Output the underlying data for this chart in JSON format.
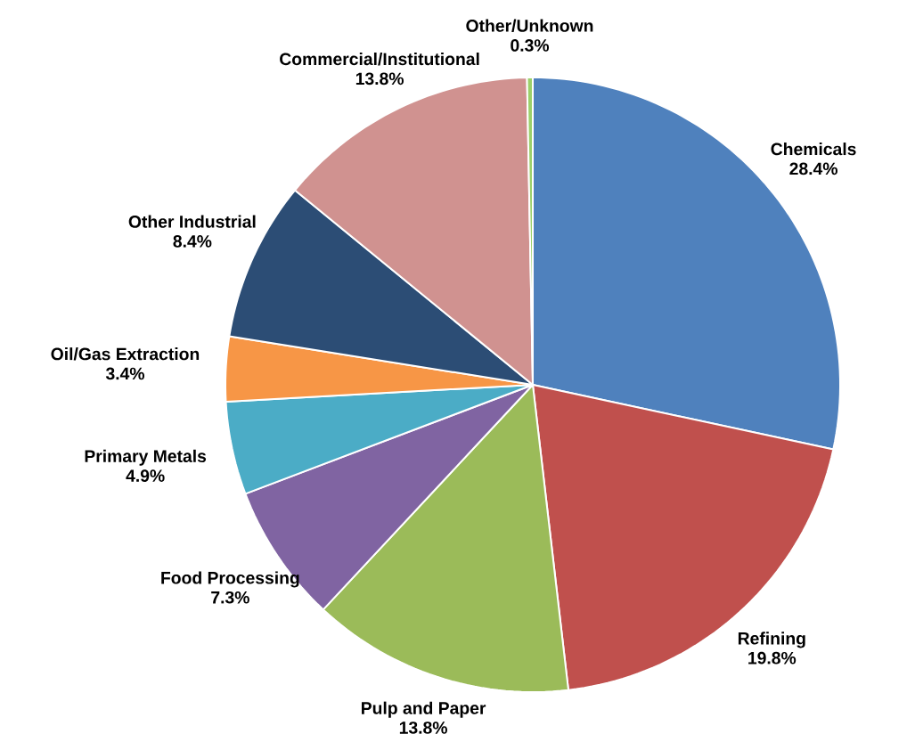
{
  "chart_data": {
    "type": "pie",
    "categories": [
      "Chemicals",
      "Refining",
      "Pulp and Paper",
      "Food Processing",
      "Primary Metals",
      "Oil/Gas Extraction",
      "Other Industrial",
      "Commercial/Institutional",
      "Other/Unknown"
    ],
    "values": [
      28.4,
      19.8,
      13.8,
      7.3,
      4.9,
      3.4,
      8.4,
      13.8,
      0.3
    ],
    "value_labels": [
      "28.4%",
      "19.8%",
      "13.8%",
      "7.3%",
      "4.9%",
      "3.4%",
      "8.4%",
      "13.8%",
      "0.3%"
    ],
    "colors": [
      "#4f81bd",
      "#c0504d",
      "#9bbb59",
      "#8064a2",
      "#4bacc6",
      "#f79646",
      "#2c4d75",
      "#d09290",
      "#9bd06a"
    ]
  }
}
